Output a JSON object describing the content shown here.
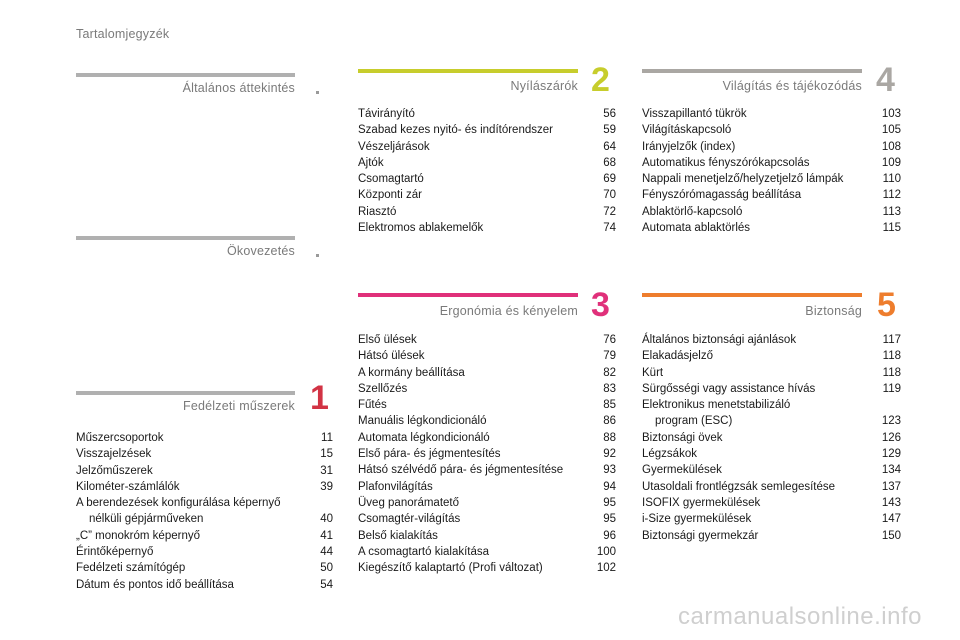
{
  "page_title": "Tartalomjegyzék",
  "watermark": "carmanualsonline.info",
  "colors": {
    "grey_bar": "#b0b0b0",
    "s1": "#d23344",
    "s2": "#c7cd2c",
    "s3": "#e0307a",
    "s4": "#aaa7a3",
    "s5": "#ee7d2d"
  },
  "sections": {
    "attekintes": {
      "title": "Általános áttekintés"
    },
    "okovezetes": {
      "title": "Ökovezetés"
    },
    "s1": {
      "title": "Fedélzeti műszerek",
      "num": "1",
      "items": [
        {
          "label": "Műszercsoportok",
          "page": "11"
        },
        {
          "label": "Visszajelzések",
          "page": "15"
        },
        {
          "label": "Jelzőműszerek",
          "page": "31"
        },
        {
          "label": "Kilométer-számlálók",
          "page": "39"
        },
        {
          "label": "A berendezések konfigurálása képernyő",
          "label2": "nélküli gépjárműveken",
          "page": "40"
        },
        {
          "label": "„C” monokróm képernyő",
          "page": "41"
        },
        {
          "label": "Érintőképernyő",
          "page": "44"
        },
        {
          "label": "Fedélzeti számítógép",
          "page": "50"
        },
        {
          "label": "Dátum és pontos idő beállítása",
          "page": "54"
        }
      ]
    },
    "s2": {
      "title": "Nyílászárók",
      "num": "2",
      "items": [
        {
          "label": "Távirányító",
          "page": "56"
        },
        {
          "label": "Szabad kezes nyitó- és indítórendszer",
          "page": "59"
        },
        {
          "label": "Vészeljárások",
          "page": "64"
        },
        {
          "label": "Ajtók",
          "page": "68"
        },
        {
          "label": "Csomagtartó",
          "page": "69"
        },
        {
          "label": "Központi zár",
          "page": "70"
        },
        {
          "label": "Riasztó",
          "page": "72"
        },
        {
          "label": "Elektromos ablakemelők",
          "page": "74"
        }
      ]
    },
    "s3": {
      "title": "Ergonómia és kényelem",
      "num": "3",
      "items": [
        {
          "label": "Első ülések",
          "page": "76"
        },
        {
          "label": "Hátsó ülések",
          "page": "79"
        },
        {
          "label": "A kormány beállítása",
          "page": "82"
        },
        {
          "label": "Szellőzés",
          "page": "83"
        },
        {
          "label": "Fűtés",
          "page": "85"
        },
        {
          "label": "Manuális légkondicionáló",
          "page": "86"
        },
        {
          "label": "Automata légkondicionáló",
          "page": "88"
        },
        {
          "label": "Első pára- és jégmentesítés",
          "page": "92"
        },
        {
          "label": "Hátsó szélvédő pára- és jégmentesítése",
          "page": "93"
        },
        {
          "label": "Plafonvilágítás",
          "page": "94"
        },
        {
          "label": "Üveg panorámatető",
          "page": "95"
        },
        {
          "label": "Csomagtér-világítás",
          "page": "95"
        },
        {
          "label": "Belső kialakítás",
          "page": "96"
        },
        {
          "label": "A csomagtartó kialakítása",
          "page": "100"
        },
        {
          "label": "Kiegészítő kalaptartó (Profi változat)",
          "page": "102"
        }
      ]
    },
    "s4": {
      "title": "Világítás és tájékozódás",
      "num": "4",
      "items": [
        {
          "label": "Visszapillantó tükrök",
          "page": "103"
        },
        {
          "label": "Világításkapcsoló",
          "page": "105"
        },
        {
          "label": "Irányjelzők (index)",
          "page": "108"
        },
        {
          "label": "Automatikus fényszórókapcsolás",
          "page": "109"
        },
        {
          "label": "Nappali menetjelző/helyzetjelző lámpák",
          "page": "110"
        },
        {
          "label": "Fényszórómagasság beállítása",
          "page": "112"
        },
        {
          "label": "Ablaktörlő-kapcsoló",
          "page": "113"
        },
        {
          "label": "Automata ablaktörlés",
          "page": "115"
        }
      ]
    },
    "s5": {
      "title": "Biztonság",
      "num": "5",
      "items": [
        {
          "label": "Általános biztonsági ajánlások",
          "page": "117"
        },
        {
          "label": "Elakadásjelző",
          "page": "118"
        },
        {
          "label": "Kürt",
          "page": "118"
        },
        {
          "label": "Sürgősségi vagy assistance hívás",
          "page": "119"
        },
        {
          "label": "Elektronikus menetstabilizáló",
          "label2": "program (ESC)",
          "page": "123"
        },
        {
          "label": "Biztonsági övek",
          "page": "126"
        },
        {
          "label": "Légzsákok",
          "page": "129"
        },
        {
          "label": "Gyermekülések",
          "page": "134"
        },
        {
          "label": "Utasoldali frontlégzsák semlegesítése",
          "page": "137"
        },
        {
          "label": "ISOFIX gyermekülések",
          "page": "143"
        },
        {
          "label": "i-Size gyermekülések",
          "page": "147"
        },
        {
          "label": "Biztonsági gyermekzár",
          "page": "150"
        }
      ]
    }
  }
}
